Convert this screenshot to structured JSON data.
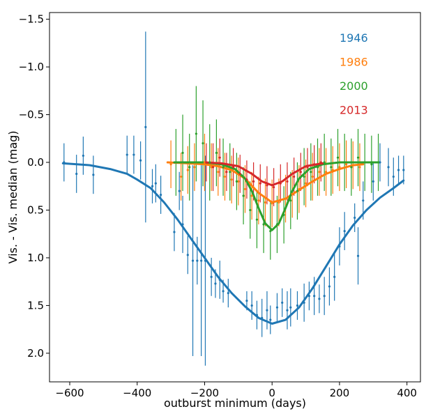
{
  "chart_data": {
    "type": "line",
    "title": "",
    "xlabel": "outburst minimum (days)",
    "ylabel": "Vis. - Vis. median (mag)",
    "xlim": [
      -660,
      440
    ],
    "ylim": [
      2.3,
      -1.57
    ],
    "y_inverted": true,
    "grid": false,
    "legend_position": "top-right",
    "xticks": [
      -600,
      -400,
      -200,
      0,
      200,
      400
    ],
    "xtick_labels": [
      "−600",
      "−400",
      "−200",
      "0",
      "200",
      "400"
    ],
    "yticks": [
      -1.5,
      -1.0,
      -0.5,
      0.0,
      0.5,
      1.0,
      1.5,
      2.0
    ],
    "ytick_labels": [
      "−1.5",
      "−1.0",
      "−0.5",
      "0.0",
      "0.5",
      "1.0",
      "1.5",
      "2.0"
    ],
    "series": [
      {
        "name": "1946",
        "color": "#1f77b4",
        "fit_x": [
          -620,
          -540,
          -480,
          -430,
          -400,
          -360,
          -320,
          -280,
          -240,
          -200,
          -160,
          -120,
          -80,
          -40,
          0,
          40,
          80,
          120,
          160,
          200,
          240,
          280,
          320,
          360,
          390
        ],
        "fit_y": [
          0.01,
          0.03,
          0.07,
          0.12,
          0.18,
          0.27,
          0.42,
          0.6,
          0.8,
          1.0,
          1.2,
          1.37,
          1.51,
          1.63,
          1.69,
          1.65,
          1.52,
          1.32,
          1.09,
          0.86,
          0.66,
          0.5,
          0.37,
          0.27,
          0.19
        ],
        "points": [
          [
            -617,
            0.0,
            0.2
          ],
          [
            -580,
            0.12,
            0.2
          ],
          [
            -560,
            -0.07,
            0.2
          ],
          [
            -530,
            0.13,
            0.2
          ],
          [
            -430,
            -0.08,
            0.2
          ],
          [
            -410,
            -0.08,
            0.2
          ],
          [
            -390,
            -0.02,
            0.2
          ],
          [
            -375,
            -0.37,
            1.0
          ],
          [
            -355,
            0.25,
            0.18
          ],
          [
            -345,
            0.22,
            0.2
          ],
          [
            -330,
            0.34,
            0.2
          ],
          [
            -290,
            0.73,
            0.2
          ],
          [
            -275,
            0.3,
            0.2
          ],
          [
            -265,
            0.65,
            0.3
          ],
          [
            -250,
            0.97,
            0.2
          ],
          [
            -235,
            1.03,
            1.0
          ],
          [
            -222,
            1.03,
            0.25
          ],
          [
            -210,
            1.03,
            1.0
          ],
          [
            -198,
            1.03,
            1.1
          ],
          [
            -180,
            1.2,
            0.2
          ],
          [
            -168,
            1.27,
            0.15
          ],
          [
            -155,
            1.23,
            0.2
          ],
          [
            -145,
            1.35,
            0.12
          ],
          [
            -130,
            1.37,
            0.15
          ],
          [
            -75,
            1.45,
            0.1
          ],
          [
            -60,
            1.5,
            0.15
          ],
          [
            -45,
            1.6,
            0.15
          ],
          [
            -30,
            1.63,
            0.2
          ],
          [
            -15,
            1.55,
            0.2
          ],
          [
            -5,
            1.65,
            0.15
          ],
          [
            15,
            1.52,
            0.15
          ],
          [
            30,
            1.47,
            0.15
          ],
          [
            45,
            1.55,
            0.2
          ],
          [
            55,
            1.52,
            0.2
          ],
          [
            75,
            1.5,
            0.15
          ],
          [
            95,
            1.47,
            0.2
          ],
          [
            110,
            1.4,
            0.15
          ],
          [
            125,
            1.4,
            0.2
          ],
          [
            140,
            1.43,
            0.15
          ],
          [
            155,
            1.4,
            0.2
          ],
          [
            170,
            1.3,
            0.2
          ],
          [
            185,
            1.2,
            0.25
          ],
          [
            200,
            0.88,
            0.2
          ],
          [
            215,
            0.72,
            0.2
          ],
          [
            245,
            0.58,
            0.15
          ],
          [
            255,
            0.98,
            0.3
          ],
          [
            270,
            0.4,
            0.2
          ],
          [
            300,
            0.2,
            0.2
          ],
          [
            320,
            0.0,
            0.2
          ],
          [
            345,
            0.05,
            0.2
          ],
          [
            360,
            0.15,
            0.2
          ],
          [
            375,
            0.08,
            0.15
          ],
          [
            390,
            0.08,
            0.15
          ]
        ]
      },
      {
        "name": "1986",
        "color": "#ff7f0e",
        "fit_x": [
          -310,
          -250,
          -200,
          -160,
          -120,
          -80,
          -40,
          0,
          40,
          80,
          120,
          160,
          200,
          240,
          270
        ],
        "fit_y": [
          0.0,
          0.01,
          0.02,
          0.04,
          0.08,
          0.17,
          0.32,
          0.42,
          0.38,
          0.29,
          0.2,
          0.12,
          0.07,
          0.03,
          0.02
        ],
        "points": [
          [
            -300,
            0.02,
            0.25
          ],
          [
            -270,
            0.15,
            0.25
          ],
          [
            -250,
            0.08,
            0.25
          ],
          [
            -230,
            0.05,
            0.25
          ],
          [
            -200,
            0.0,
            0.3
          ],
          [
            -180,
            0.05,
            0.25
          ],
          [
            -160,
            0.1,
            0.25
          ],
          [
            -140,
            0.15,
            0.25
          ],
          [
            -120,
            0.18,
            0.25
          ],
          [
            -100,
            0.2,
            0.25
          ],
          [
            -80,
            0.28,
            0.25
          ],
          [
            -60,
            0.35,
            0.25
          ],
          [
            -40,
            0.4,
            0.25
          ],
          [
            -20,
            0.42,
            0.25
          ],
          [
            0,
            0.43,
            0.25
          ],
          [
            20,
            0.42,
            0.25
          ],
          [
            40,
            0.38,
            0.25
          ],
          [
            60,
            0.33,
            0.25
          ],
          [
            80,
            0.28,
            0.25
          ],
          [
            100,
            0.22,
            0.25
          ],
          [
            120,
            0.15,
            0.25
          ],
          [
            140,
            0.1,
            0.25
          ],
          [
            160,
            0.1,
            0.25
          ],
          [
            180,
            0.08,
            0.25
          ],
          [
            200,
            0.05,
            0.25
          ],
          [
            220,
            0.02,
            0.25
          ],
          [
            240,
            0.03,
            0.25
          ],
          [
            260,
            0.05,
            0.25
          ]
        ]
      },
      {
        "name": "2000",
        "color": "#2ca02c",
        "fit_x": [
          -290,
          -200,
          -150,
          -110,
          -80,
          -60,
          -40,
          -20,
          0,
          20,
          40,
          60,
          80,
          110,
          150,
          200,
          250,
          320
        ],
        "fit_y": [
          0.0,
          0.0,
          0.02,
          0.07,
          0.17,
          0.3,
          0.48,
          0.64,
          0.71,
          0.64,
          0.48,
          0.3,
          0.17,
          0.07,
          0.02,
          0.0,
          0.0,
          0.0
        ],
        "points": [
          [
            -285,
            0.0,
            0.35
          ],
          [
            -265,
            -0.1,
            0.4
          ],
          [
            -245,
            0.05,
            0.35
          ],
          [
            -225,
            -0.3,
            0.5
          ],
          [
            -205,
            -0.2,
            0.45
          ],
          [
            -185,
            0.0,
            0.4
          ],
          [
            -165,
            -0.1,
            0.35
          ],
          [
            -145,
            0.05,
            0.3
          ],
          [
            -125,
            0.1,
            0.3
          ],
          [
            -105,
            0.2,
            0.3
          ],
          [
            -85,
            0.35,
            0.3
          ],
          [
            -65,
            0.5,
            0.3
          ],
          [
            -45,
            0.6,
            0.3
          ],
          [
            -25,
            0.65,
            0.3
          ],
          [
            -5,
            0.72,
            0.3
          ],
          [
            15,
            0.65,
            0.3
          ],
          [
            35,
            0.55,
            0.3
          ],
          [
            55,
            0.4,
            0.3
          ],
          [
            75,
            0.3,
            0.3
          ],
          [
            95,
            0.15,
            0.3
          ],
          [
            115,
            0.1,
            0.3
          ],
          [
            135,
            0.05,
            0.3
          ],
          [
            155,
            0.0,
            0.3
          ],
          [
            175,
            0.05,
            0.3
          ],
          [
            195,
            -0.05,
            0.3
          ],
          [
            215,
            0.0,
            0.3
          ],
          [
            235,
            0.05,
            0.3
          ],
          [
            255,
            -0.05,
            0.3
          ],
          [
            275,
            0.0,
            0.3
          ],
          [
            295,
            0.02,
            0.3
          ],
          [
            315,
            0.0,
            0.3
          ]
        ]
      },
      {
        "name": "2013",
        "color": "#d62728",
        "fit_x": [
          -200,
          -150,
          -100,
          -60,
          -30,
          0,
          30,
          60,
          100,
          150
        ],
        "fit_y": [
          0.0,
          0.01,
          0.04,
          0.12,
          0.2,
          0.24,
          0.2,
          0.12,
          0.04,
          0.01
        ],
        "points": [
          [
            -195,
            0.0,
            0.2
          ],
          [
            -175,
            0.05,
            0.25
          ],
          [
            -155,
            -0.05,
            0.2
          ],
          [
            -135,
            0.1,
            0.2
          ],
          [
            -115,
            0.05,
            0.2
          ],
          [
            -95,
            0.12,
            0.2
          ],
          [
            -75,
            0.18,
            0.2
          ],
          [
            -55,
            0.2,
            0.2
          ],
          [
            -35,
            0.22,
            0.2
          ],
          [
            -15,
            0.24,
            0.2
          ],
          [
            5,
            0.26,
            0.2
          ],
          [
            25,
            0.22,
            0.2
          ],
          [
            45,
            0.2,
            0.2
          ],
          [
            65,
            0.15,
            0.2
          ],
          [
            85,
            0.1,
            0.2
          ],
          [
            105,
            0.05,
            0.2
          ],
          [
            125,
            0.02,
            0.2
          ],
          [
            145,
            0.0,
            0.2
          ]
        ]
      }
    ]
  }
}
